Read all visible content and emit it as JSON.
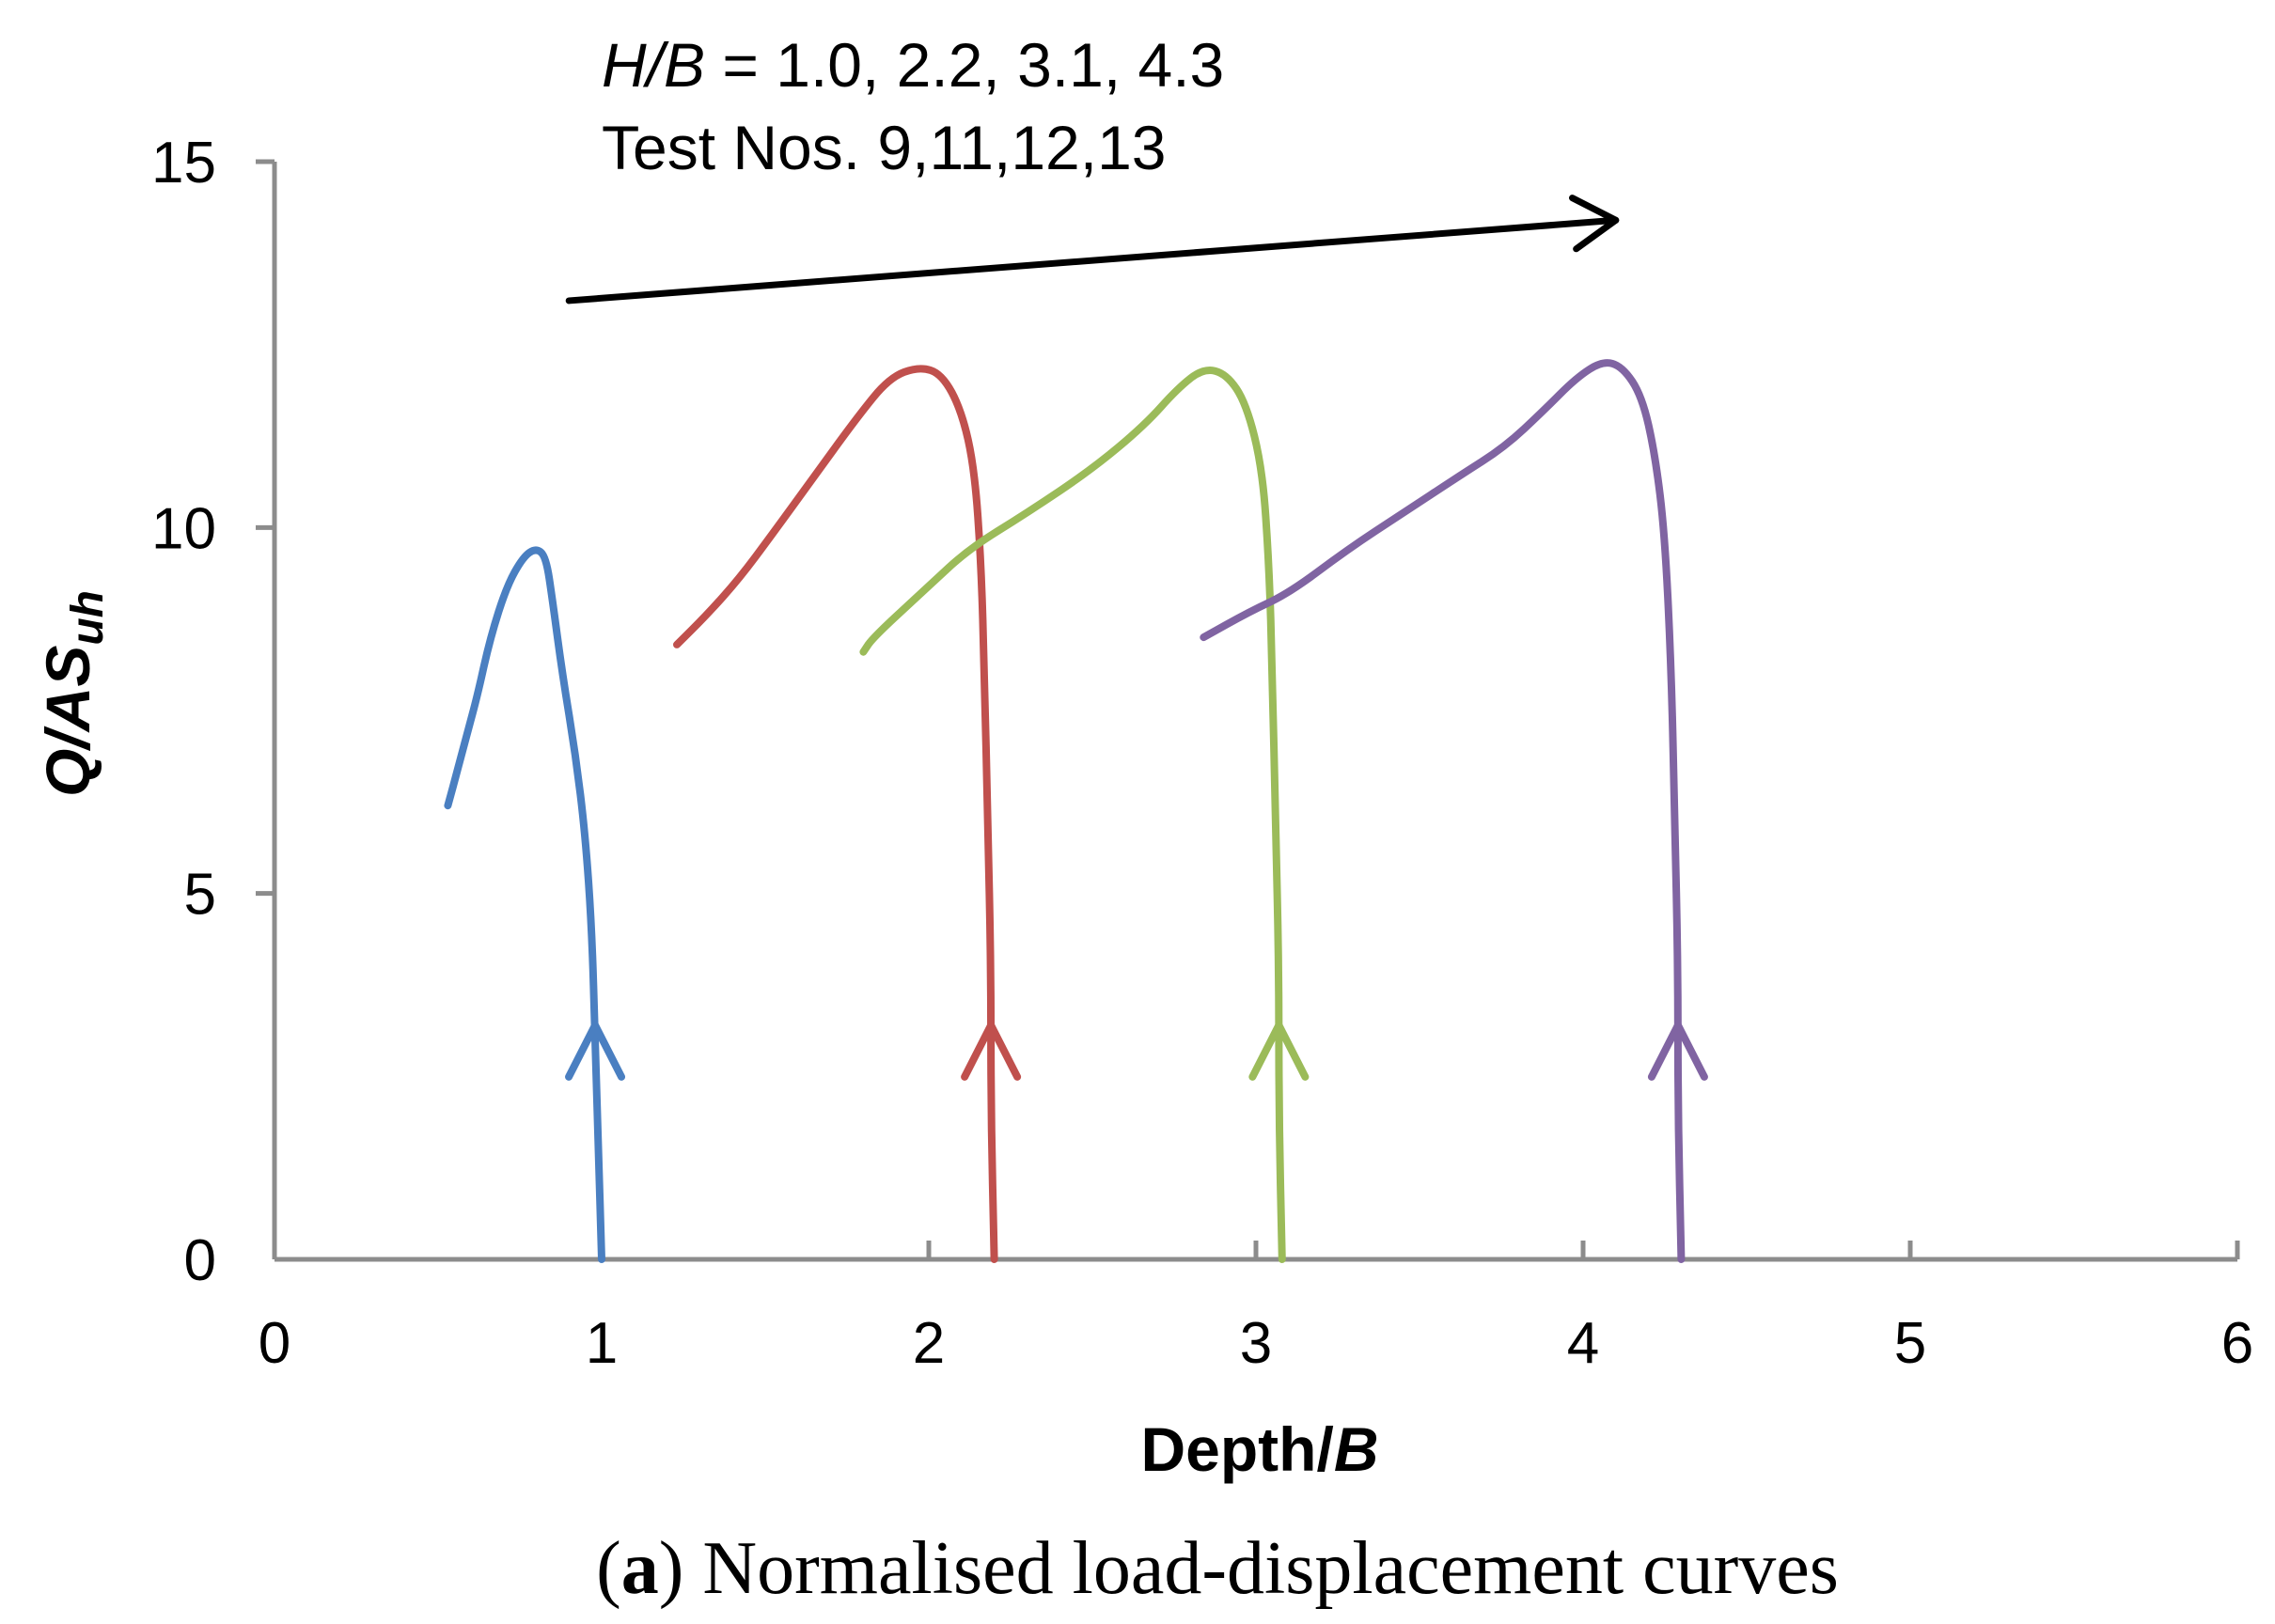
{
  "chart_data": {
    "type": "line",
    "caption": {
      "label": "a",
      "text": " Normalised load-displacement curves"
    },
    "xlabel": {
      "main": "Depth/",
      "italic": "B"
    },
    "ylabel": {
      "main": "Q/AS",
      "subscript": "uh"
    },
    "xlim": [
      0,
      6
    ],
    "ylim": [
      0,
      15
    ],
    "xticks": [
      "0",
      "1",
      "2",
      "3",
      "4",
      "5",
      "6"
    ],
    "yticks": [
      "0",
      "5",
      "10",
      "15"
    ],
    "annotation": {
      "line1_italic": "H/B",
      "line1_rest": " = 1.0, 2.2, 3.1, 4.3",
      "line2": "Test Nos. 9,11,12,13",
      "arrow_from": [
        0.9,
        13.1
      ],
      "arrow_to": [
        4.1,
        14.2
      ]
    },
    "series": [
      {
        "name": "Test 9 (H/B = 1.0)",
        "color": "#4a7fc1",
        "points": [
          [
            1.0,
            0
          ],
          [
            0.99,
            1.5
          ],
          [
            0.98,
            3.0
          ],
          [
            0.97,
            4.5
          ],
          [
            0.95,
            5.8
          ],
          [
            0.92,
            6.9
          ],
          [
            0.88,
            8.0
          ],
          [
            0.85,
            9.0
          ],
          [
            0.83,
            9.6
          ],
          [
            0.8,
            9.72
          ],
          [
            0.76,
            9.6
          ],
          [
            0.71,
            9.2
          ],
          [
            0.66,
            8.5
          ],
          [
            0.62,
            7.7
          ],
          [
            0.59,
            7.2
          ],
          [
            0.56,
            6.7
          ],
          [
            0.53,
            6.2
          ]
        ]
      },
      {
        "name": "Test 11 (H/B = 2.2)",
        "color": "#c0504d",
        "points": [
          [
            2.2,
            0
          ],
          [
            2.19,
            2.0
          ],
          [
            2.19,
            4.0
          ],
          [
            2.18,
            6.0
          ],
          [
            2.17,
            8.0
          ],
          [
            2.16,
            9.5
          ],
          [
            2.14,
            10.8
          ],
          [
            2.1,
            11.6
          ],
          [
            2.04,
            12.1
          ],
          [
            1.97,
            12.2
          ],
          [
            1.88,
            12.05
          ],
          [
            1.78,
            11.5
          ],
          [
            1.65,
            10.7
          ],
          [
            1.52,
            9.9
          ],
          [
            1.42,
            9.3
          ],
          [
            1.32,
            8.8
          ],
          [
            1.23,
            8.4
          ]
        ]
      },
      {
        "name": "Test 12 (H/B = 3.1)",
        "color": "#9bbb59",
        "points": [
          [
            3.08,
            0
          ],
          [
            3.07,
            2.0
          ],
          [
            3.07,
            4.0
          ],
          [
            3.06,
            6.0
          ],
          [
            3.05,
            8.0
          ],
          [
            3.04,
            9.5
          ],
          [
            3.02,
            10.8
          ],
          [
            2.97,
            11.7
          ],
          [
            2.91,
            12.1
          ],
          [
            2.84,
            12.18
          ],
          [
            2.76,
            11.9
          ],
          [
            2.66,
            11.4
          ],
          [
            2.5,
            10.8
          ],
          [
            2.3,
            10.2
          ],
          [
            2.12,
            9.7
          ],
          [
            2.0,
            9.2
          ],
          [
            1.83,
            8.5
          ],
          [
            1.8,
            8.3
          ]
        ]
      },
      {
        "name": "Test 13 (H/B = 4.3)",
        "color": "#8064a2",
        "points": [
          [
            4.3,
            0
          ],
          [
            4.29,
            2.0
          ],
          [
            4.29,
            4.0
          ],
          [
            4.28,
            6.0
          ],
          [
            4.27,
            8.0
          ],
          [
            4.25,
            9.9
          ],
          [
            4.22,
            11.0
          ],
          [
            4.18,
            11.8
          ],
          [
            4.12,
            12.2
          ],
          [
            4.06,
            12.28
          ],
          [
            3.98,
            12.05
          ],
          [
            3.88,
            11.6
          ],
          [
            3.76,
            11.1
          ],
          [
            3.62,
            10.7
          ],
          [
            3.45,
            10.2
          ],
          [
            3.28,
            9.7
          ],
          [
            3.1,
            9.1
          ],
          [
            2.98,
            8.85
          ],
          [
            2.84,
            8.5
          ]
        ]
      }
    ]
  }
}
